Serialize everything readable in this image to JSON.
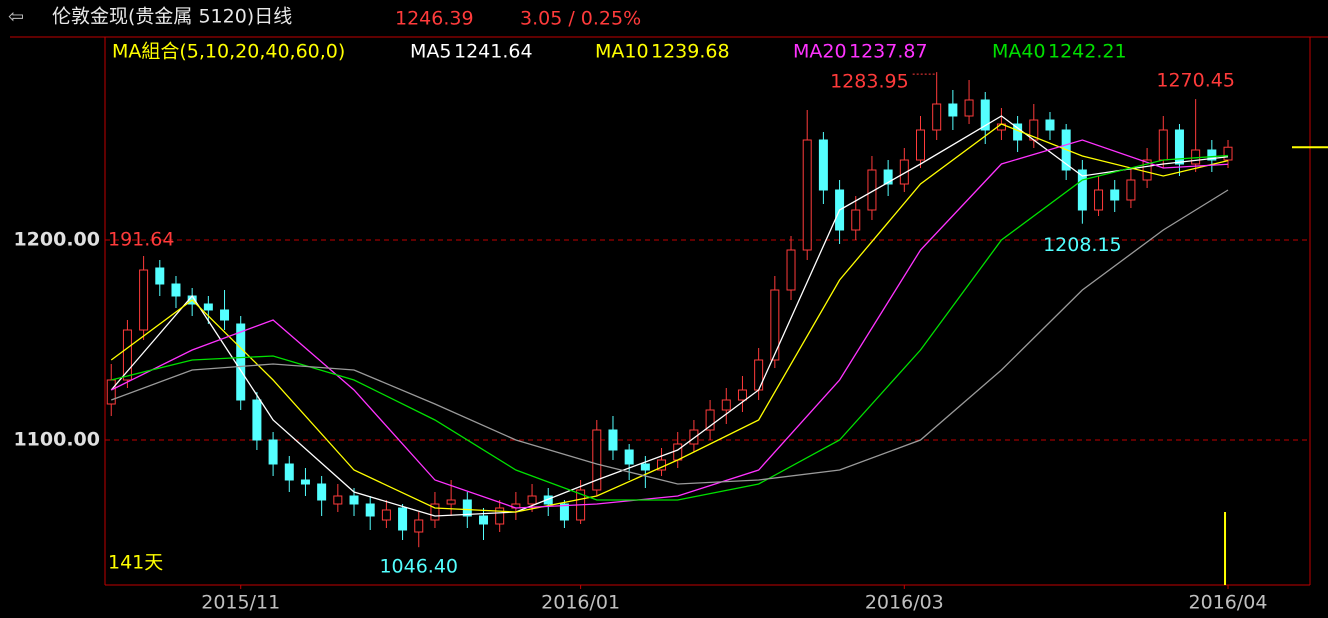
{
  "chart_data": {
    "type": "candlestick",
    "header": {
      "title": "伦敦金现(贵金属 5120)日线",
      "change": "3.05 / 0.25%"
    },
    "ma_title": "MA組合(5,10,20,40,60,0)",
    "days_label": "141天",
    "level_label": "191.64",
    "up_color": "#ff3b3b",
    "down_color": "#54ffff",
    "ylim": [
      1027.5,
      1301
    ],
    "yticks": [
      {
        "value": 1100,
        "label": "1100.00"
      },
      {
        "value": 1200,
        "label": "1200.00"
      }
    ],
    "xlim": [
      -0.2,
      73.2
    ],
    "xticks": [
      {
        "value": 8,
        "label": "2015/11"
      },
      {
        "value": 29,
        "label": "2016/01"
      },
      {
        "value": 49,
        "label": "2016/03"
      },
      {
        "value": 69,
        "label": "2016/04"
      }
    ],
    "open": [
      1118,
      1130,
      1155,
      1186,
      1178,
      1172,
      1168,
      1165,
      1158,
      1120,
      1100,
      1088,
      1080,
      1078,
      1068,
      1072,
      1068,
      1060,
      1066,
      1054,
      1060,
      1068,
      1070,
      1062,
      1058,
      1066,
      1068,
      1072,
      1068,
      1060,
      1075,
      1105,
      1095,
      1088,
      1085,
      1090,
      1098,
      1105,
      1115,
      1120,
      1125,
      1140,
      1175,
      1195,
      1250,
      1225,
      1205,
      1215,
      1235,
      1228,
      1240,
      1255,
      1268,
      1262,
      1270,
      1255,
      1258,
      1250,
      1260,
      1255,
      1235,
      1215,
      1225,
      1220,
      1230,
      1240,
      1255,
      1238,
      1245,
      1240
    ],
    "high": [
      1138,
      1160,
      1192,
      1190,
      1182,
      1176,
      1172,
      1175,
      1162,
      1124,
      1104,
      1092,
      1086,
      1082,
      1078,
      1076,
      1072,
      1070,
      1068,
      1064,
      1074,
      1080,
      1074,
      1066,
      1070,
      1074,
      1078,
      1076,
      1070,
      1080,
      1110,
      1112,
      1098,
      1092,
      1096,
      1104,
      1110,
      1120,
      1126,
      1132,
      1146,
      1182,
      1202,
      1265,
      1254,
      1230,
      1222,
      1242,
      1240,
      1246,
      1262,
      1283.95,
      1275,
      1280,
      1274,
      1266,
      1262,
      1268,
      1264,
      1258,
      1240,
      1232,
      1230,
      1236,
      1246,
      1262,
      1258,
      1270.45,
      1250,
      1250
    ],
    "low": [
      1112,
      1126,
      1150,
      1172,
      1166,
      1162,
      1158,
      1155,
      1115,
      1095,
      1082,
      1074,
      1072,
      1062,
      1064,
      1062,
      1055,
      1056,
      1050,
      1046.4,
      1056,
      1062,
      1056,
      1050,
      1054,
      1060,
      1064,
      1062,
      1056,
      1058,
      1072,
      1090,
      1080,
      1076,
      1082,
      1086,
      1094,
      1100,
      1108,
      1114,
      1120,
      1136,
      1170,
      1190,
      1218,
      1198,
      1200,
      1210,
      1222,
      1224,
      1236,
      1250,
      1255,
      1258,
      1248,
      1250,
      1244,
      1246,
      1250,
      1230,
      1208.15,
      1212,
      1214,
      1216,
      1226,
      1236,
      1232,
      1234,
      1234,
      1236
    ],
    "close": [
      1130,
      1155,
      1185,
      1178,
      1172,
      1168,
      1165,
      1160,
      1120,
      1100,
      1088,
      1080,
      1078,
      1070,
      1072,
      1068,
      1062,
      1065,
      1055,
      1060,
      1068,
      1070,
      1062,
      1058,
      1066,
      1068,
      1072,
      1068,
      1060,
      1075,
      1105,
      1095,
      1088,
      1085,
      1090,
      1098,
      1105,
      1115,
      1120,
      1125,
      1140,
      1175,
      1195,
      1250,
      1225,
      1205,
      1215,
      1235,
      1228,
      1240,
      1255,
      1268,
      1262,
      1270,
      1255,
      1258,
      1250,
      1260,
      1255,
      1235,
      1215,
      1225,
      1220,
      1230,
      1240,
      1255,
      1238,
      1245,
      1240,
      1246.39
    ],
    "annotations": [
      "1283.95",
      "1270.45",
      "1208.15",
      "1046.40"
    ],
    "series": [
      {
        "name": "MA5",
        "color": "#ffffff",
        "x": [
          0,
          5,
          10,
          15,
          20,
          25,
          30,
          35,
          40,
          45,
          50,
          55,
          60,
          65,
          69
        ],
        "values": [
          1125,
          1172,
          1110,
          1074,
          1062,
          1064,
          1080,
          1095,
          1125,
          1215,
          1238,
          1262,
          1232,
          1238,
          1241.64
        ]
      },
      {
        "name": "MA10",
        "color": "#ffff00",
        "x": [
          0,
          5,
          10,
          15,
          20,
          25,
          30,
          35,
          40,
          45,
          50,
          55,
          60,
          65,
          69
        ],
        "values": [
          1140,
          1170,
          1130,
          1085,
          1066,
          1064,
          1072,
          1090,
          1110,
          1180,
          1228,
          1258,
          1242,
          1232,
          1239.68
        ]
      },
      {
        "name": "MA20",
        "color": "#ff33ff",
        "x": [
          0,
          5,
          10,
          15,
          20,
          25,
          30,
          35,
          40,
          45,
          50,
          55,
          60,
          65,
          69
        ],
        "values": [
          1125,
          1145,
          1160,
          1125,
          1080,
          1066,
          1068,
          1072,
          1085,
          1130,
          1195,
          1238,
          1250,
          1236,
          1237.87
        ]
      },
      {
        "name": "MA40",
        "color": "#00e000",
        "x": [
          0,
          5,
          10,
          15,
          20,
          25,
          30,
          35,
          40,
          45,
          50,
          55,
          60,
          65,
          69
        ],
        "values": [
          1130,
          1140,
          1142,
          1130,
          1110,
          1085,
          1070,
          1070,
          1078,
          1100,
          1145,
          1200,
          1230,
          1240,
          1242.21
        ]
      },
      {
        "color": "#9a9a9a",
        "x": [
          0,
          5,
          10,
          15,
          20,
          25,
          30,
          35,
          40,
          45,
          50,
          55,
          60,
          65,
          69
        ],
        "values": [
          1120,
          1135,
          1138,
          1135,
          1118,
          1100,
          1088,
          1078,
          1080,
          1085,
          1100,
          1135,
          1175,
          1205,
          1225
        ]
      }
    ]
  }
}
